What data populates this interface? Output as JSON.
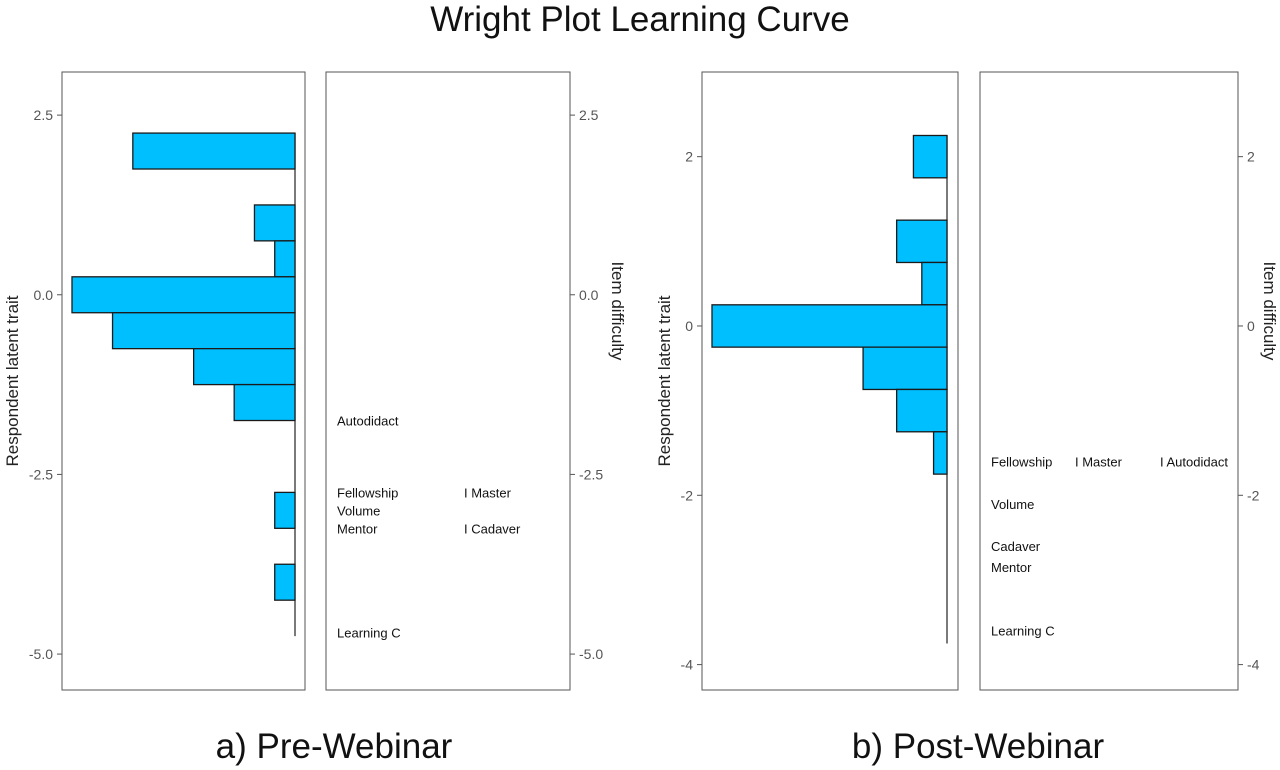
{
  "title": "Wright Plot Learning Curve",
  "chart_data": [
    {
      "type": "wright_map",
      "caption": "a) Pre-Webinar",
      "ylabel": "Respondent latent trait",
      "ylabel_right": "Item difficulty",
      "ylim": [
        -5.5,
        3.1
      ],
      "yticks": [
        2.5,
        0.0,
        -2.5,
        -5.0
      ],
      "ytick_labels": [
        "2.5",
        "0.0",
        "-2.5",
        "-5.0"
      ],
      "bar_color": "#00BFFF",
      "histogram": [
        {
          "y0": 1.75,
          "y1": 2.25,
          "count": 8
        },
        {
          "y0": 0.75,
          "y1": 1.25,
          "count": 2
        },
        {
          "y0": 0.25,
          "y1": 0.75,
          "count": 1
        },
        {
          "y0": -0.25,
          "y1": 0.25,
          "count": 11
        },
        {
          "y0": -0.75,
          "y1": -0.25,
          "count": 9
        },
        {
          "y0": -1.25,
          "y1": -0.75,
          "count": 5
        },
        {
          "y0": -1.75,
          "y1": -1.25,
          "count": 3
        },
        {
          "y0": -3.25,
          "y1": -2.75,
          "count": 1
        },
        {
          "y0": -4.25,
          "y1": -3.75,
          "count": 1
        }
      ],
      "trait_range": [
        -4.75,
        2.25
      ],
      "items": [
        {
          "label": "Autodidact",
          "difficulty": -1.75,
          "col": 0
        },
        {
          "label": "Fellowship",
          "difficulty": -2.75,
          "col": 0
        },
        {
          "label": "Volume",
          "difficulty": -3.0,
          "col": 0
        },
        {
          "label": "Mentor",
          "difficulty": -3.25,
          "col": 0
        },
        {
          "label": "Learning C",
          "difficulty": -4.7,
          "col": 0
        },
        {
          "label": "I Master",
          "difficulty": -2.75,
          "col": 1
        },
        {
          "label": "I Cadaver",
          "difficulty": -3.25,
          "col": 1
        }
      ]
    },
    {
      "type": "wright_map",
      "caption": "b) Post-Webinar",
      "ylabel": "Respondent latent trait",
      "ylabel_right": "Item difficulty",
      "ylim": [
        -4.3,
        3.0
      ],
      "yticks": [
        2,
        0,
        -2,
        -4
      ],
      "ytick_labels": [
        "2",
        "0",
        "-2",
        "-4"
      ],
      "bar_color": "#00BFFF",
      "histogram": [
        {
          "y0": 1.75,
          "y1": 2.25,
          "count": 1
        },
        {
          "y0": 0.75,
          "y1": 1.25,
          "count": 1.5
        },
        {
          "y0": 0.25,
          "y1": 0.75,
          "count": 0.75
        },
        {
          "y0": -0.25,
          "y1": 0.25,
          "count": 7
        },
        {
          "y0": -0.75,
          "y1": -0.25,
          "count": 2.5
        },
        {
          "y0": -1.25,
          "y1": -0.75,
          "count": 1.5
        },
        {
          "y0": -1.75,
          "y1": -1.25,
          "count": 0.4
        }
      ],
      "trait_range": [
        -3.75,
        2.25
      ],
      "items": [
        {
          "label": "Fellowship",
          "difficulty": -1.6,
          "col": 0
        },
        {
          "label": "Volume",
          "difficulty": -2.1,
          "col": 0
        },
        {
          "label": "Cadaver",
          "difficulty": -2.6,
          "col": 0
        },
        {
          "label": "Mentor",
          "difficulty": -2.85,
          "col": 0
        },
        {
          "label": "Learning C",
          "difficulty": -3.6,
          "col": 0
        },
        {
          "label": "I Master",
          "difficulty": -1.6,
          "col": 1
        },
        {
          "label": "I Autodidact",
          "difficulty": -1.6,
          "col": 2
        }
      ]
    }
  ]
}
